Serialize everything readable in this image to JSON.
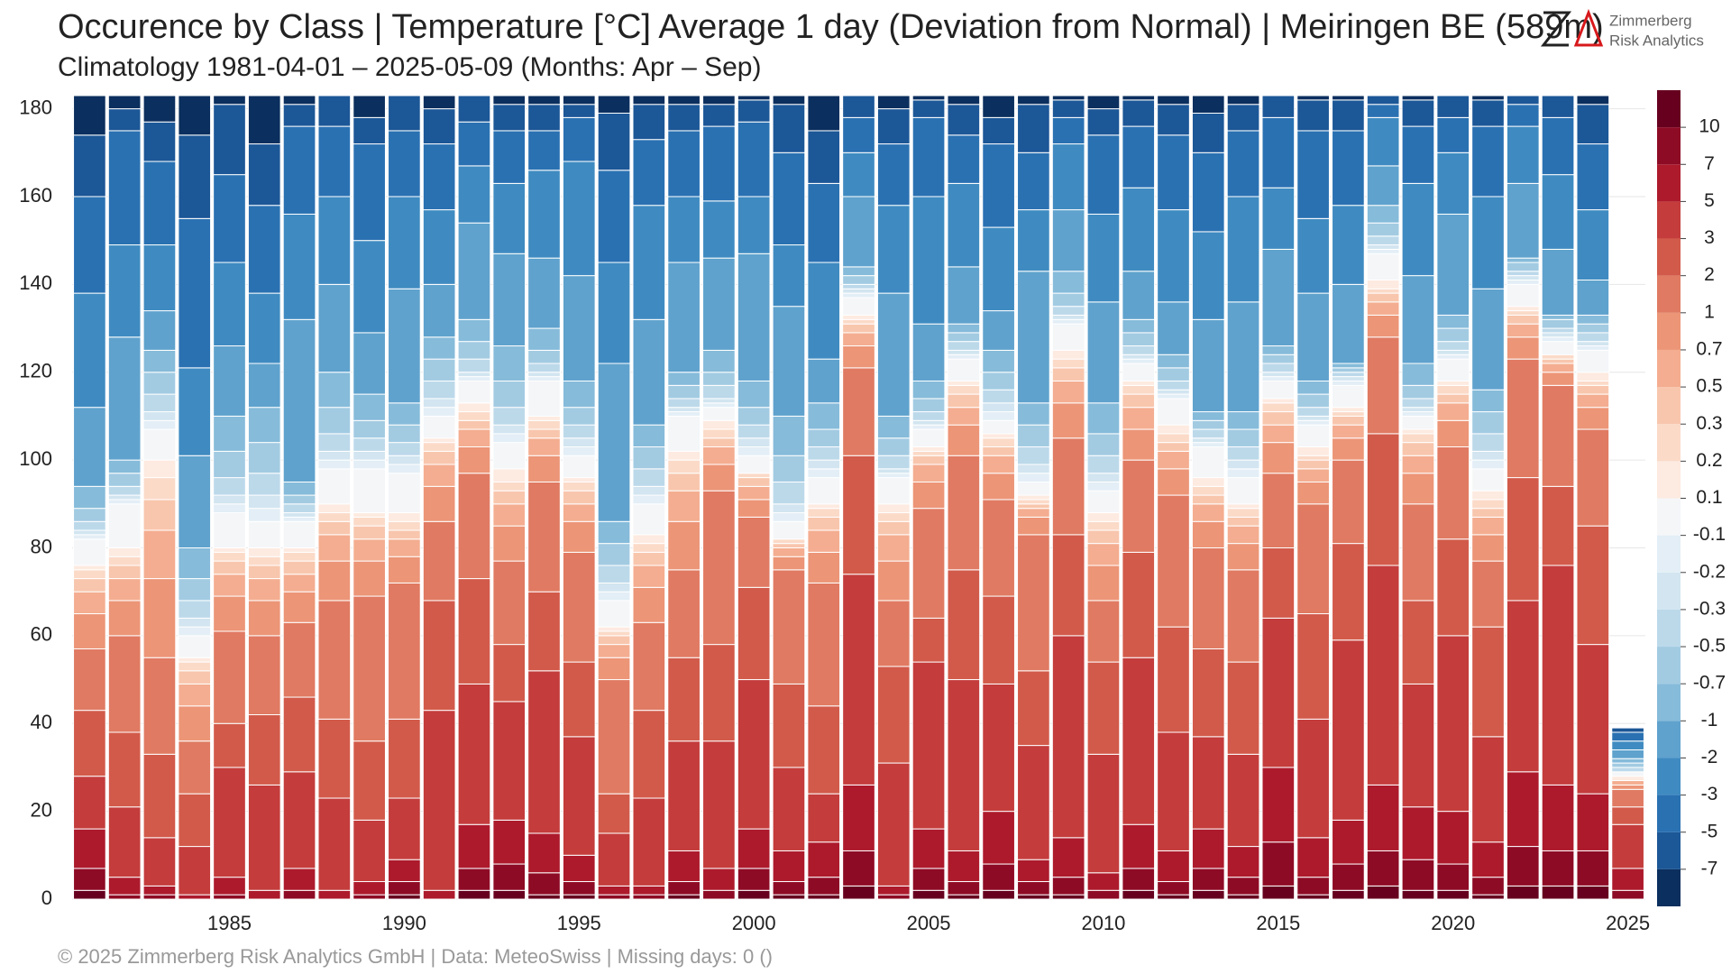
{
  "chart_data": {
    "type": "stacked_bar",
    "title": "Occurence by Class | Temperature [°C] Average 1 day (Deviation from Normal) | Meiringen  BE (589m)",
    "subtitle": "Climatology 1981-04-01 – 2025-05-09 (Months: Apr – Sep)",
    "caption": "©  2025 Zimmerberg Risk Analytics GmbH | Data: MeteoSwiss | Missing days: 0 ()",
    "categories": [
      null,
      null,
      null,
      null,
      "1985",
      null,
      null,
      null,
      null,
      "1990",
      null,
      null,
      null,
      null,
      "1995",
      null,
      null,
      null,
      null,
      "2000",
      null,
      null,
      null,
      null,
      "2005",
      null,
      null,
      null,
      null,
      "2010",
      null,
      null,
      null,
      null,
      "2015",
      null,
      null,
      null,
      null,
      "2020",
      null,
      null,
      null,
      null,
      "2025"
    ],
    "ylim": [
      0,
      183
    ],
    "yticks": [
      0,
      20,
      40,
      60,
      80,
      100,
      120,
      140,
      160,
      180
    ],
    "grid": true,
    "colorbar": {
      "ticks": [
        -7,
        -5,
        -3,
        -2,
        -1,
        -0.7,
        -0.5,
        -0.3,
        -0.2,
        -0.1,
        0.1,
        0.2,
        0.3,
        0.5,
        0.7,
        1,
        2,
        3,
        5,
        7,
        10
      ]
    },
    "series": [
      {
        "color": "#67001f",
        "values": [
          2,
          0,
          0,
          0,
          0,
          0,
          0,
          0,
          0,
          1,
          0,
          2,
          2,
          1,
          1,
          0,
          0,
          1,
          0,
          2,
          1,
          1,
          3,
          0,
          2,
          1,
          2,
          1,
          1,
          0,
          2,
          1,
          2,
          1,
          3,
          1,
          2,
          3,
          2,
          2,
          1,
          3,
          3,
          3,
          0
        ]
      },
      {
        "color": "#8e0b25",
        "values": [
          5,
          1,
          1,
          0,
          1,
          0,
          2,
          0,
          1,
          3,
          0,
          5,
          6,
          5,
          3,
          1,
          1,
          3,
          2,
          5,
          3,
          4,
          8,
          1,
          5,
          3,
          6,
          3,
          4,
          2,
          5,
          3,
          5,
          4,
          10,
          4,
          6,
          8,
          7,
          6,
          4,
          9,
          8,
          8,
          2
        ]
      },
      {
        "color": "#ad1a2c",
        "values": [
          9,
          4,
          2,
          1,
          4,
          2,
          5,
          2,
          3,
          5,
          2,
          10,
          10,
          9,
          6,
          2,
          2,
          7,
          5,
          9,
          7,
          8,
          15,
          2,
          9,
          7,
          12,
          5,
          9,
          4,
          10,
          7,
          9,
          7,
          17,
          9,
          10,
          15,
          12,
          12,
          8,
          17,
          15,
          13,
          5
        ]
      },
      {
        "color": "#c43c3c",
        "values": [
          12,
          16,
          11,
          11,
          25,
          24,
          22,
          21,
          14,
          14,
          41,
          32,
          27,
          37,
          27,
          12,
          20,
          25,
          29,
          34,
          19,
          11,
          48,
          28,
          38,
          39,
          29,
          26,
          46,
          27,
          38,
          27,
          21,
          21,
          34,
          27,
          41,
          50,
          28,
          40,
          24,
          39,
          50,
          34,
          10
        ]
      },
      {
        "color": "#d25a4a",
        "values": [
          15,
          17,
          19,
          12,
          10,
          16,
          17,
          18,
          18,
          18,
          25,
          24,
          13,
          18,
          17,
          9,
          20,
          19,
          22,
          21,
          19,
          20,
          27,
          22,
          10,
          25,
          20,
          17,
          23,
          21,
          24,
          24,
          20,
          21,
          16,
          24,
          22,
          30,
          19,
          22,
          25,
          28,
          18,
          27,
          4
        ]
      },
      {
        "color": "#e07a62",
        "values": [
          14,
          22,
          22,
          12,
          21,
          18,
          17,
          27,
          33,
          31,
          18,
          24,
          19,
          25,
          25,
          26,
          20,
          20,
          35,
          16,
          26,
          28,
          20,
          15,
          25,
          26,
          22,
          31,
          22,
          14,
          21,
          30,
          23,
          21,
          17,
          25,
          19,
          22,
          22,
          21,
          15,
          27,
          23,
          22,
          4
        ]
      },
      {
        "color": "#ec9577",
        "values": [
          8,
          8,
          18,
          8,
          8,
          8,
          7,
          9,
          8,
          6,
          8,
          6,
          8,
          6,
          7,
          5,
          8,
          11,
          6,
          4,
          3,
          7,
          5,
          9,
          6,
          7,
          6,
          4,
          8,
          8,
          7,
          6,
          6,
          6,
          7,
          5,
          5,
          5,
          7,
          6,
          6,
          5,
          3,
          5,
          1
        ]
      },
      {
        "color": "#f4ad90",
        "values": [
          5,
          5,
          11,
          5,
          5,
          5,
          4,
          6,
          5,
          4,
          5,
          4,
          5,
          4,
          4,
          3,
          5,
          7,
          4,
          3,
          2,
          5,
          3,
          6,
          4,
          4,
          4,
          2,
          5,
          5,
          5,
          4,
          4,
          4,
          4,
          3,
          3,
          3,
          4,
          4,
          4,
          3,
          2,
          3,
          1
        ]
      },
      {
        "color": "#f8c6ad",
        "values": [
          3,
          3,
          7,
          3,
          3,
          3,
          3,
          3,
          3,
          2,
          3,
          2,
          3,
          2,
          3,
          2,
          3,
          4,
          2,
          2,
          1,
          3,
          2,
          3,
          2,
          3,
          2,
          1,
          3,
          3,
          3,
          2,
          2,
          2,
          3,
          2,
          2,
          2,
          3,
          2,
          2,
          2,
          1,
          2,
          0
        ]
      },
      {
        "color": "#fbdac8",
        "values": [
          2,
          2,
          5,
          2,
          2,
          2,
          2,
          2,
          2,
          2,
          2,
          2,
          2,
          2,
          2,
          1,
          2,
          3,
          2,
          1,
          1,
          2,
          1,
          2,
          1,
          2,
          2,
          1,
          2,
          2,
          2,
          2,
          2,
          2,
          2,
          1,
          1,
          1,
          2,
          2,
          2,
          1,
          1,
          1,
          0
        ]
      },
      {
        "color": "#fdeae0",
        "values": [
          1,
          2,
          4,
          1,
          1,
          2,
          1,
          2,
          1,
          2,
          1,
          2,
          3,
          1,
          1,
          1,
          2,
          2,
          2,
          0,
          0,
          1,
          1,
          2,
          1,
          1,
          1,
          1,
          2,
          2,
          1,
          2,
          2,
          1,
          1,
          2,
          1,
          2,
          1,
          1,
          2,
          1,
          0,
          2,
          1
        ]
      },
      {
        "color": "#f4f6f8",
        "values": [
          6,
          10,
          7,
          5,
          8,
          6,
          6,
          8,
          10,
          9,
          5,
          5,
          6,
          8,
          5,
          6,
          7,
          8,
          3,
          4,
          4,
          6,
          4,
          6,
          4,
          5,
          3,
          3,
          6,
          5,
          4,
          6,
          7,
          6,
          4,
          5,
          5,
          6,
          3,
          5,
          5,
          5,
          3,
          5,
          1
        ]
      },
      {
        "color": "#e3eef6",
        "values": [
          1,
          1,
          2,
          2,
          2,
          3,
          1,
          2,
          2,
          2,
          2,
          1,
          2,
          1,
          2,
          2,
          2,
          1,
          1,
          2,
          2,
          2,
          1,
          1,
          1,
          1,
          2,
          2,
          1,
          2,
          1,
          1,
          1,
          2,
          1,
          1,
          1,
          1,
          1,
          1,
          2,
          1,
          1,
          1,
          0
        ]
      },
      {
        "color": "#d2e5f0",
        "values": [
          1,
          1,
          2,
          2,
          2,
          3,
          1,
          2,
          2,
          2,
          2,
          1,
          2,
          1,
          2,
          2,
          2,
          1,
          1,
          2,
          2,
          2,
          1,
          1,
          1,
          1,
          2,
          2,
          1,
          2,
          1,
          1,
          1,
          2,
          1,
          1,
          1,
          1,
          1,
          1,
          2,
          1,
          1,
          1,
          0
        ]
      },
      {
        "color": "#bcd9ea",
        "values": [
          2,
          2,
          4,
          4,
          4,
          5,
          2,
          4,
          3,
          3,
          4,
          3,
          4,
          2,
          3,
          4,
          4,
          2,
          3,
          3,
          5,
          3,
          1,
          3,
          2,
          2,
          3,
          4,
          2,
          4,
          2,
          2,
          2,
          3,
          2,
          2,
          1,
          2,
          2,
          2,
          4,
          1,
          1,
          2,
          1
        ]
      },
      {
        "color": "#a2cbe2",
        "values": [
          3,
          3,
          5,
          5,
          6,
          7,
          2,
          6,
          4,
          4,
          5,
          4,
          6,
          3,
          4,
          5,
          5,
          3,
          3,
          4,
          6,
          4,
          2,
          4,
          3,
          2,
          4,
          5,
          3,
          5,
          3,
          3,
          2,
          4,
          2,
          3,
          1,
          3,
          3,
          3,
          5,
          2,
          2,
          2,
          1
        ]
      },
      {
        "color": "#86bbda",
        "values": [
          5,
          3,
          5,
          7,
          8,
          8,
          3,
          8,
          6,
          5,
          5,
          5,
          8,
          5,
          6,
          5,
          5,
          3,
          5,
          6,
          9,
          6,
          2,
          5,
          4,
          2,
          5,
          5,
          5,
          7,
          3,
          3,
          2,
          4,
          2,
          3,
          1,
          4,
          5,
          3,
          5,
          1,
          1,
          2,
          1
        ]
      },
      {
        "color": "#5fa2cd",
        "values": [
          18,
          28,
          9,
          21,
          16,
          10,
          37,
          20,
          14,
          26,
          12,
          22,
          21,
          16,
          24,
          36,
          24,
          25,
          21,
          29,
          25,
          10,
          16,
          28,
          13,
          13,
          9,
          30,
          14,
          23,
          11,
          12,
          21,
          25,
          22,
          20,
          18,
          9,
          20,
          23,
          23,
          17,
          15,
          8,
          2
        ]
      },
      {
        "color": "#3f8bc1",
        "values": [
          26,
          21,
          15,
          20,
          19,
          16,
          24,
          20,
          21,
          21,
          17,
          13,
          16,
          20,
          26,
          23,
          26,
          15,
          13,
          13,
          14,
          22,
          10,
          20,
          29,
          19,
          19,
          14,
          15,
          20,
          19,
          21,
          20,
          24,
          14,
          17,
          18,
          11,
          21,
          14,
          21,
          13,
          17,
          16,
          2
        ]
      },
      {
        "color": "#2a71b2",
        "values": [
          22,
          26,
          19,
          34,
          20,
          20,
          20,
          16,
          22,
          15,
          15,
          10,
          12,
          9,
          10,
          21,
          15,
          15,
          17,
          17,
          21,
          18,
          8,
          14,
          18,
          11,
          19,
          13,
          6,
          18,
          14,
          17,
          18,
          15,
          16,
          20,
          17,
          3,
          13,
          8,
          16,
          5,
          13,
          15,
          2
        ]
      },
      {
        "color": "#1c5797",
        "values": [
          14,
          5,
          9,
          19,
          16,
          14,
          5,
          7,
          6,
          8,
          8,
          6,
          6,
          6,
          3,
          13,
          8,
          6,
          5,
          5,
          11,
          12,
          5,
          8,
          4,
          7,
          6,
          11,
          4,
          6,
          6,
          7,
          9,
          6,
          5,
          7,
          7,
          2,
          6,
          5,
          6,
          2,
          5,
          9,
          1
        ]
      },
      {
        "color": "#0b2f5e",
        "values": [
          9,
          3,
          6,
          9,
          2,
          11,
          2,
          0,
          5,
          0,
          3,
          0,
          2,
          2,
          2,
          4,
          2,
          2,
          2,
          1,
          2,
          8,
          0,
          3,
          1,
          2,
          5,
          2,
          1,
          3,
          1,
          2,
          4,
          2,
          0,
          1,
          1,
          0,
          1,
          0,
          1,
          0,
          0,
          2,
          0
        ]
      }
    ]
  },
  "logo": {
    "line1": "Zimmerberg",
    "line2": "Risk Analytics"
  }
}
